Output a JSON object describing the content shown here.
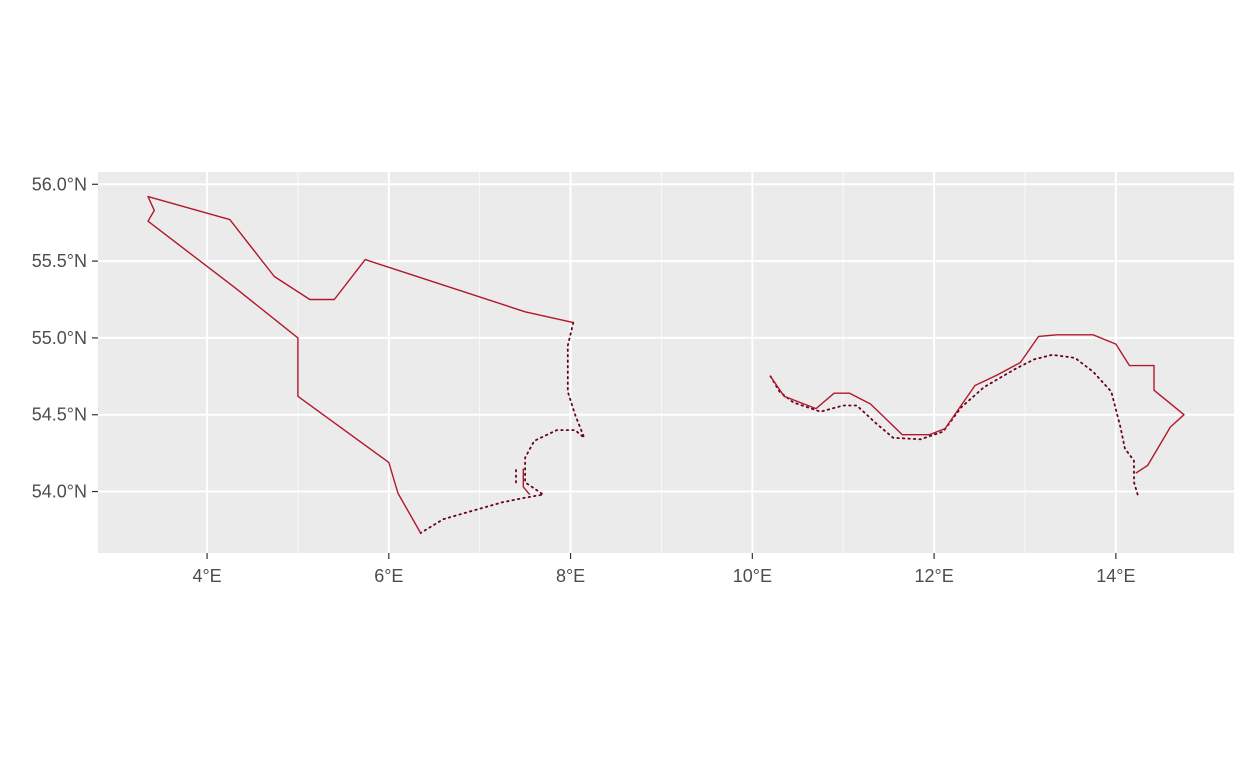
{
  "chart_data": {
    "type": "map",
    "title": "",
    "xlabel": "",
    "ylabel": "",
    "xlim": [
      2.8,
      15.3
    ],
    "ylim": [
      53.6,
      56.08
    ],
    "grid": true,
    "background_color": "#ebebeb",
    "grid_color": "#ffffff",
    "line_color": "#b2182b",
    "dotted_color": "#67001f",
    "x_ticks": [
      {
        "value": 4,
        "label": "4°E"
      },
      {
        "value": 6,
        "label": "6°E"
      },
      {
        "value": 8,
        "label": "8°E"
      },
      {
        "value": 10,
        "label": "10°E"
      },
      {
        "value": 12,
        "label": "12°E"
      },
      {
        "value": 14,
        "label": "14°E"
      }
    ],
    "y_ticks": [
      {
        "value": 56.0,
        "label": "56.0°N"
      },
      {
        "value": 55.5,
        "label": "55.5°N"
      },
      {
        "value": 55.0,
        "label": "55.0°N"
      },
      {
        "value": 54.5,
        "label": "54.5°N"
      },
      {
        "value": 54.0,
        "label": "54.0°N"
      }
    ],
    "solid_lines": [
      {
        "coords": [
          [
            8.03,
            55.1
          ],
          [
            7.5,
            55.17
          ],
          [
            5.74,
            55.51
          ],
          [
            5.4,
            55.25
          ],
          [
            5.13,
            55.25
          ],
          [
            4.74,
            55.4
          ],
          [
            4.25,
            55.77
          ],
          [
            3.35,
            55.92
          ],
          [
            3.42,
            55.83
          ],
          [
            3.35,
            55.76
          ],
          [
            4.3,
            55.33
          ],
          [
            5.0,
            55.0
          ],
          [
            5.0,
            54.62
          ],
          [
            6.0,
            54.19
          ],
          [
            6.1,
            53.99
          ],
          [
            6.35,
            53.73
          ]
        ]
      },
      {
        "coords": [
          [
            7.55,
            53.98
          ],
          [
            7.48,
            54.03
          ],
          [
            7.48,
            54.15
          ]
        ]
      },
      {
        "coords": [
          [
            10.2,
            54.75
          ],
          [
            10.35,
            54.62
          ],
          [
            10.7,
            54.54
          ],
          [
            10.9,
            54.64
          ],
          [
            11.07,
            54.64
          ],
          [
            11.3,
            54.57
          ],
          [
            11.65,
            54.37
          ],
          [
            11.95,
            54.37
          ],
          [
            12.12,
            54.41
          ],
          [
            12.45,
            54.69
          ],
          [
            12.7,
            54.76
          ],
          [
            12.95,
            54.84
          ],
          [
            13.15,
            55.01
          ],
          [
            13.35,
            55.02
          ],
          [
            13.75,
            55.02
          ],
          [
            14.0,
            54.96
          ],
          [
            14.15,
            54.82
          ],
          [
            14.42,
            54.82
          ],
          [
            14.42,
            54.66
          ],
          [
            14.75,
            54.5
          ],
          [
            14.6,
            54.42
          ],
          [
            14.35,
            54.17
          ],
          [
            14.22,
            54.12
          ]
        ]
      }
    ],
    "dotted_lines": [
      {
        "coords": [
          [
            8.03,
            55.1
          ],
          [
            7.97,
            54.95
          ],
          [
            7.97,
            54.65
          ],
          [
            8.05,
            54.5
          ],
          [
            8.15,
            54.35
          ],
          [
            8.05,
            54.4
          ],
          [
            7.85,
            54.4
          ],
          [
            7.6,
            54.33
          ],
          [
            7.5,
            54.22
          ],
          [
            7.5,
            54.06
          ],
          [
            7.7,
            53.98
          ],
          [
            7.5,
            53.96
          ],
          [
            7.25,
            53.93
          ],
          [
            6.95,
            53.88
          ],
          [
            6.6,
            53.82
          ],
          [
            6.35,
            53.73
          ]
        ]
      },
      {
        "coords": [
          [
            7.4,
            54.14
          ],
          [
            7.4,
            54.04
          ]
        ]
      },
      {
        "coords": [
          [
            10.2,
            54.75
          ],
          [
            10.3,
            54.65
          ],
          [
            10.45,
            54.58
          ],
          [
            10.75,
            54.52
          ],
          [
            11.0,
            54.56
          ],
          [
            11.15,
            54.56
          ],
          [
            11.35,
            54.45
          ],
          [
            11.55,
            54.35
          ],
          [
            11.85,
            54.34
          ],
          [
            12.1,
            54.39
          ],
          [
            12.3,
            54.55
          ],
          [
            12.55,
            54.68
          ],
          [
            12.9,
            54.8
          ],
          [
            13.1,
            54.86
          ],
          [
            13.3,
            54.89
          ],
          [
            13.55,
            54.87
          ],
          [
            13.75,
            54.78
          ],
          [
            13.95,
            54.65
          ],
          [
            14.05,
            54.42
          ],
          [
            14.1,
            54.28
          ],
          [
            14.2,
            54.2
          ],
          [
            14.2,
            54.06
          ],
          [
            14.25,
            53.96
          ]
        ]
      }
    ]
  }
}
